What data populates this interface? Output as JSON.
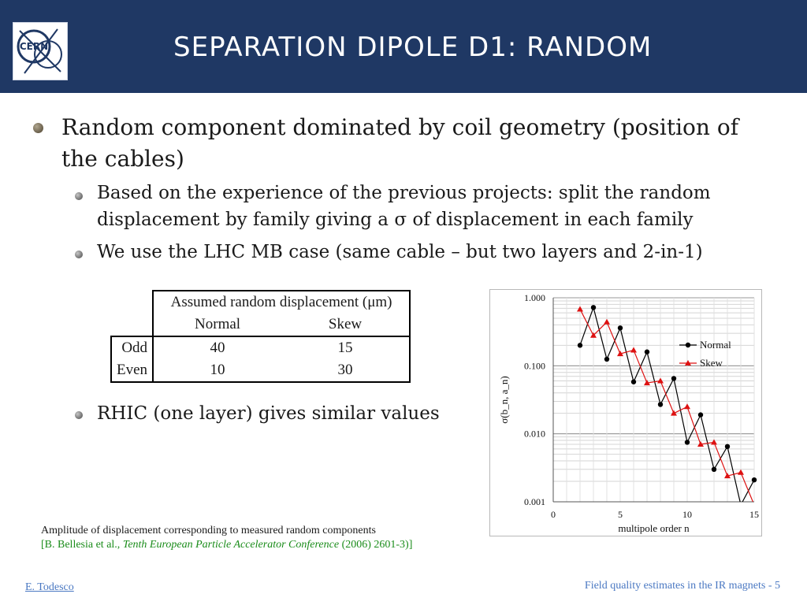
{
  "header": {
    "title": "Separation dipole D1: random",
    "logo_text": "CERN"
  },
  "bullets": {
    "b1": "Random component dominated by coil geometry (position of the cables)",
    "b2": "Based on the experience of the previous projects: split the random displacement by family giving a σ of displacement in each family",
    "b3": "We use the LHC MB case (same cable – but two layers and 2-in-1)",
    "b4": "RHIC (one layer) gives similar values"
  },
  "table": {
    "caption": "Assumed random displacement (μm)",
    "columns": [
      "Normal",
      "Skew"
    ],
    "rows": [
      {
        "label": "Odd",
        "values": [
          "40",
          "15"
        ]
      },
      {
        "label": "Even",
        "values": [
          "10",
          "30"
        ]
      }
    ]
  },
  "caption": {
    "line1": "Amplitude of displacement corresponding to measured random components",
    "cite_pre": "[B. Bellesia et al., ",
    "cite_italic": "Tenth European Particle Accelerator Conference",
    "cite_post": " (2006) 2601-3)]"
  },
  "footer": {
    "author": "E. Todesco",
    "right": "Field quality estimates in the IR magnets - 5"
  },
  "chart_data": {
    "type": "line",
    "xlabel": "multipole order n",
    "ylabel": "σ(b_n, a_n)",
    "xlim": [
      0,
      15
    ],
    "ylim": [
      0.001,
      1.0
    ],
    "yscale": "log",
    "x_ticks": [
      "0",
      "5",
      "10",
      "15"
    ],
    "y_ticks": [
      "0.001",
      "0.010",
      "0.100",
      "1.000"
    ],
    "grid": true,
    "legend_position": "right",
    "series": [
      {
        "name": "Normal",
        "color": "#000000",
        "marker": "circle",
        "x": [
          2,
          3,
          4,
          5,
          6,
          7,
          8,
          9,
          10,
          11,
          12,
          13,
          14,
          15
        ],
        "y": [
          0.2,
          0.72,
          0.125,
          0.36,
          0.058,
          0.16,
          0.027,
          0.065,
          0.0075,
          0.019,
          0.003,
          0.0065,
          0.0009,
          0.0021
        ]
      },
      {
        "name": "Skew",
        "color": "#dd1111",
        "marker": "triangle",
        "x": [
          2,
          3,
          4,
          5,
          6,
          7,
          8,
          9,
          10,
          11,
          12,
          13,
          14,
          15
        ],
        "y": [
          0.68,
          0.28,
          0.44,
          0.15,
          0.17,
          0.056,
          0.06,
          0.02,
          0.025,
          0.007,
          0.0075,
          0.0024,
          0.0027,
          0.0009
        ]
      }
    ]
  }
}
